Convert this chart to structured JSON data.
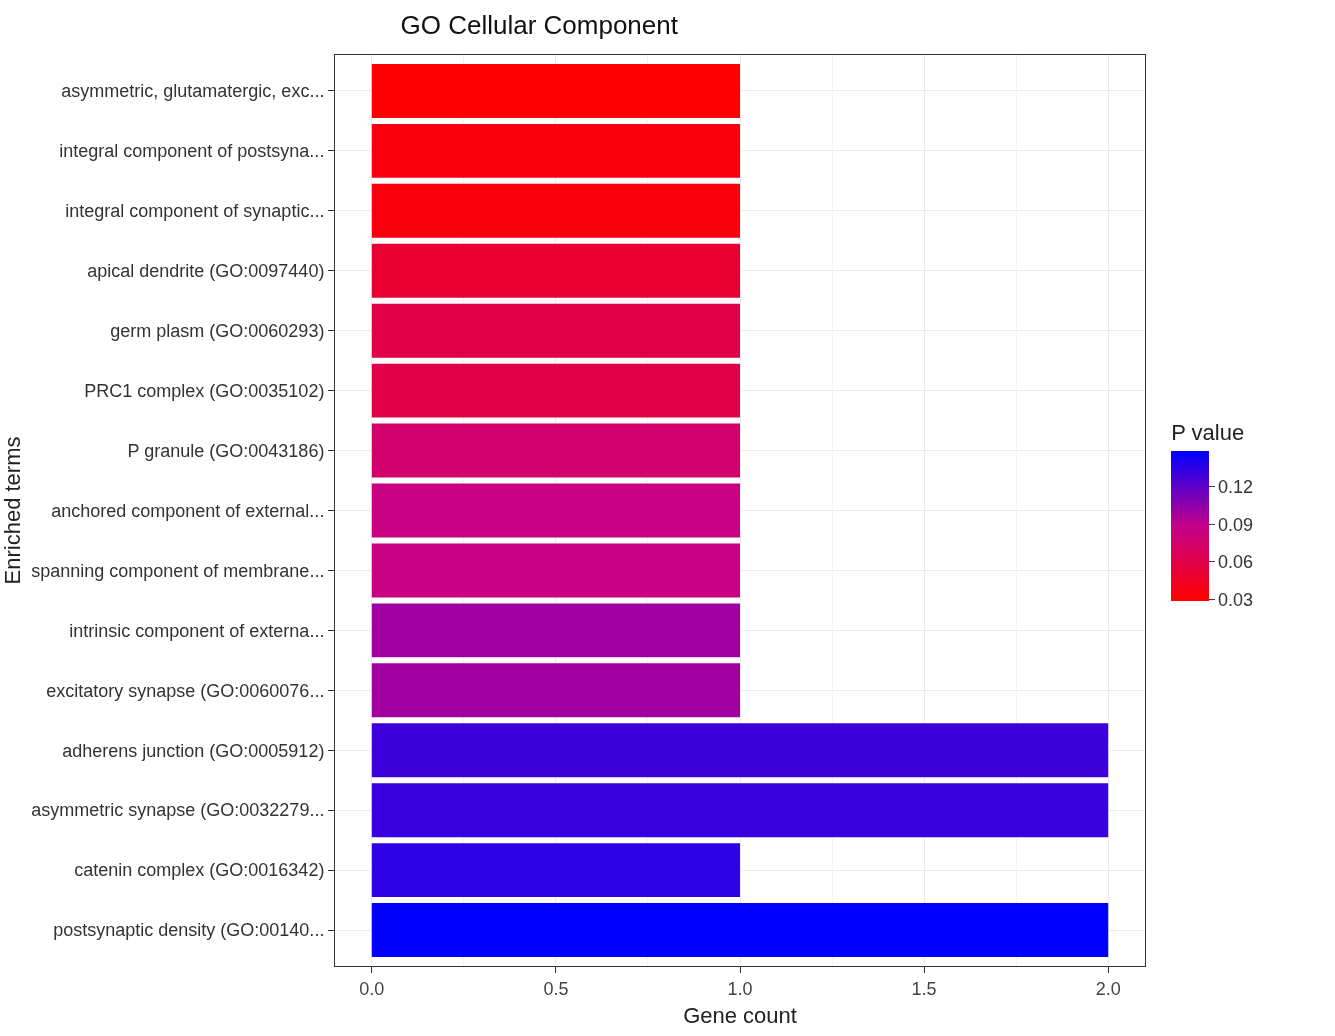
{
  "chart_data": {
    "type": "bar",
    "orientation": "horizontal",
    "title": "GO Cellular Component",
    "xlabel": "Gene count",
    "ylabel": "Enriched terms",
    "clabel": "P value",
    "categories": [
      "asymmetric, glutamatergic, exc...",
      "integral component of postsyna...",
      "integral component of synaptic...",
      "apical dendrite (GO:0097440)",
      "germ plasm (GO:0060293)",
      "PRC1 complex (GO:0035102)",
      "P granule (GO:0043186)",
      "anchored component of external...",
      "spanning component of membrane...",
      "intrinsic component of externa...",
      "excitatory synapse (GO:0060076...",
      "adherens junction (GO:0005912)",
      "asymmetric synapse (GO:0032279...",
      "catenin complex (GO:0016342)",
      "postsynaptic density (GO:00140..."
    ],
    "values": [
      1,
      1,
      1,
      1,
      1,
      1,
      1,
      1,
      1,
      1,
      1,
      2,
      2,
      1,
      2
    ],
    "cvalues": [
      0.029,
      0.035,
      0.035,
      0.05,
      0.06,
      0.06,
      0.075,
      0.085,
      0.085,
      0.1,
      0.1,
      0.13,
      0.132,
      0.135,
      0.149
    ],
    "clim": [
      0.029,
      0.149
    ],
    "cticks": [
      0.03,
      0.06,
      0.09,
      0.12
    ],
    "xlim": [
      -0.1,
      2.1
    ],
    "xticks": [
      {
        "value": 0,
        "label": "0.0"
      },
      0.5,
      {
        "value": 1,
        "label": "1.0"
      },
      1.5,
      {
        "value": 2,
        "label": "2.0"
      }
    ],
    "grid": true
  }
}
